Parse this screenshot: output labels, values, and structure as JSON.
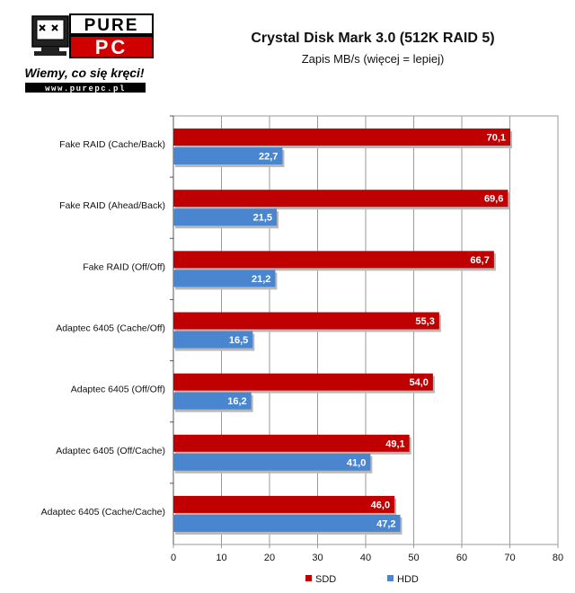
{
  "header": {
    "logo_tagline": "Wiemy, co się kręci!",
    "logo_url": "www.purepc.pl",
    "logo_word": "PUREPC"
  },
  "chart_data": {
    "type": "bar",
    "orientation": "horizontal",
    "title": "Crystal Disk Mark 3.0 (512K RAID 5)",
    "subtitle": "Zapis MB/s (więcej = lepiej)",
    "categories": [
      "Fake RAID (Cache/Back)",
      "Fake RAID (Ahead/Back)",
      "Fake RAID (Off/Off)",
      "Adaptec 6405 (Cache/Off)",
      "Adaptec 6405 (Off/Off)",
      "Adaptec 6405 (Off/Cache)",
      "Adaptec 6405 (Cache/Cache)"
    ],
    "series": [
      {
        "name": "SDD",
        "color": "#c00000",
        "values": [
          70.1,
          69.6,
          66.7,
          55.3,
          54.0,
          49.1,
          46.0
        ],
        "labels": [
          "70,1",
          "69,6",
          "66,7",
          "55,3",
          "54,0",
          "49,1",
          "46,0"
        ]
      },
      {
        "name": "HDD",
        "color": "#4a86d0",
        "values": [
          22.7,
          21.5,
          21.2,
          16.5,
          16.2,
          41.0,
          47.2
        ],
        "labels": [
          "22,7",
          "21,5",
          "21,2",
          "16,5",
          "16,2",
          "41,0",
          "47,2"
        ]
      }
    ],
    "xlim": [
      0,
      80
    ],
    "xticks": [
      0,
      10,
      20,
      30,
      40,
      50,
      60,
      70,
      80
    ],
    "grid": true,
    "legend_position": "bottom"
  }
}
